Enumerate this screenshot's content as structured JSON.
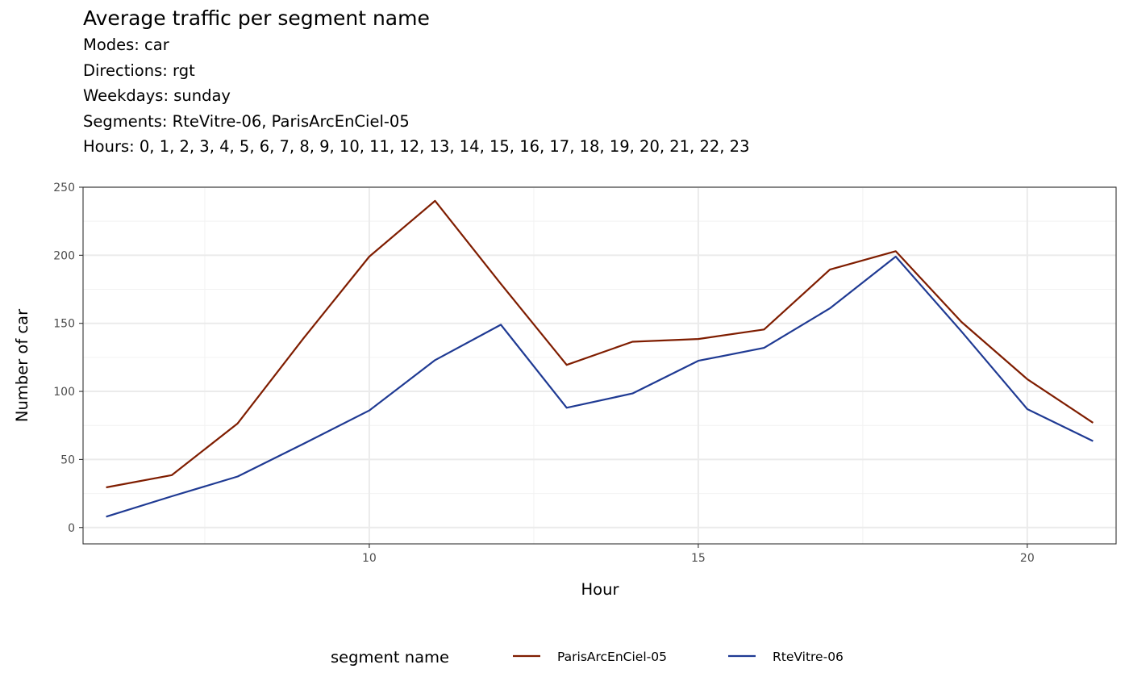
{
  "chart_data": {
    "type": "line",
    "title": "Average traffic per segment name",
    "subtitle_lines": [
      "Modes: car",
      "Directions: rgt",
      "Weekdays: sunday",
      "Segments: RteVitre-06, ParisArcEnCiel-05",
      "Hours: 0, 1, 2, 3, 4, 5, 6, 7, 8, 9, 10, 11, 12, 13, 14, 15, 16, 17, 18, 19, 20, 21, 22, 23"
    ],
    "xlabel": "Hour",
    "ylabel": "Number of car",
    "xlim": [
      5.65,
      21.35
    ],
    "ylim": [
      -12,
      250
    ],
    "x_ticks": [
      10,
      15,
      20
    ],
    "x_minor_ticks": [
      7.5,
      12.5,
      17.5
    ],
    "y_ticks": [
      0,
      50,
      100,
      150,
      200,
      250
    ],
    "y_minor_ticks": [
      25,
      75,
      125,
      175,
      225
    ],
    "grid": true,
    "legend": {
      "title": "segment name",
      "position": "bottom"
    },
    "x": [
      6,
      7,
      8,
      9,
      10,
      11,
      12,
      13,
      14,
      15,
      16,
      17,
      18,
      19,
      20,
      21
    ],
    "series": [
      {
        "name": "ParisArcEnCiel-05",
        "color": "#7f1d00",
        "values": [
          29.5,
          38.5,
          76.5,
          139,
          199,
          240,
          179,
          119.5,
          136.5,
          138.5,
          145.5,
          189.5,
          203,
          151,
          109,
          77
        ]
      },
      {
        "name": "RteVitre-06",
        "color": "#1f3a93",
        "values": [
          8,
          23,
          37.5,
          61.5,
          86,
          123,
          149,
          88,
          98.5,
          122.5,
          132,
          161,
          199,
          144,
          87,
          63.5
        ]
      }
    ]
  }
}
